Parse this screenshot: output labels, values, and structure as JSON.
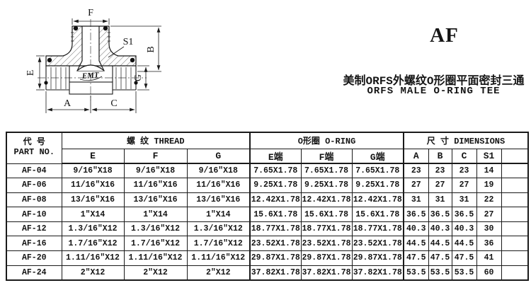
{
  "header": {
    "series": "AF",
    "title_cn": "美制ORFS外螺纹O形圈平面密封三通",
    "title_en": "ORFS MALE O-RING TEE"
  },
  "drawing": {
    "logo": "EMT",
    "labels": {
      "f": "F",
      "s1": "S1",
      "b": "B",
      "e": "E",
      "g": "G",
      "a": "A",
      "c": "C"
    }
  },
  "table": {
    "part_header_cn": "代  号",
    "part_header_en": "PART  NO.",
    "thread_header": "螺  纹   THREAD",
    "oring_header": "O形圈 O-RING",
    "dim_header": "尺  寸    DIMENSIONS",
    "sub_headers": [
      "E",
      "F",
      "G",
      "E端",
      "F端",
      "G端",
      "A",
      "B",
      "C",
      "S1",
      ""
    ],
    "rows": [
      [
        "AF-04",
        "9/16″X18",
        "9/16″X18",
        "9/16″X18",
        "7.65X1.78",
        "7.65X1.78",
        "7.65X1.78",
        "23",
        "23",
        "23",
        "14",
        ""
      ],
      [
        "AF-06",
        "11/16″X16",
        "11/16″X16",
        "11/16″X16",
        "9.25X1.78",
        "9.25X1.78",
        "9.25X1.78",
        "27",
        "27",
        "27",
        "19",
        ""
      ],
      [
        "AF-08",
        "13/16″X16",
        "13/16″X16",
        "13/16″X16",
        "12.42X1.78",
        "12.42X1.78",
        "12.42X1.78",
        "31",
        "31",
        "31",
        "22",
        ""
      ],
      [
        "AF-10",
        "1″X14",
        "1″X14",
        "1″X14",
        "15.6X1.78",
        "15.6X1.78",
        "15.6X1.78",
        "36.5",
        "36.5",
        "36.5",
        "27",
        ""
      ],
      [
        "AF-12",
        "1.3/16″X12",
        "1.3/16″X12",
        "1.3/16″X12",
        "18.77X1.78",
        "18.77X1.78",
        "18.77X1.78",
        "40.3",
        "40.3",
        "40.3",
        "30",
        ""
      ],
      [
        "AF-16",
        "1.7/16″X12",
        "1.7/16″X12",
        "1.7/16″X12",
        "23.52X1.78",
        "23.52X1.78",
        "23.52X1.78",
        "44.5",
        "44.5",
        "44.5",
        "36",
        ""
      ],
      [
        "AF-20",
        "1.11/16″X12",
        "1.11/16″X12",
        "1.11/16″X12",
        "29.87X1.78",
        "29.87X1.78",
        "29.87X1.78",
        "47.5",
        "47.5",
        "47.5",
        "41",
        ""
      ],
      [
        "AF-24",
        "2″X12",
        "2″X12",
        "2″X12",
        "37.82X1.78",
        "37.82X1.78",
        "37.82X1.78",
        "53.5",
        "53.5",
        "53.5",
        "60",
        ""
      ]
    ]
  },
  "colors": {
    "line": "#1a1a1a",
    "text": "#141414",
    "background": "#ffffff"
  }
}
